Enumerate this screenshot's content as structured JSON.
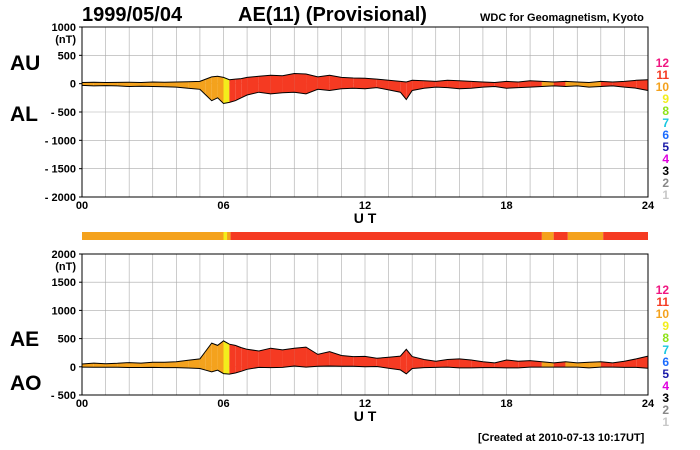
{
  "header": {
    "date": "1999/05/04",
    "title": "AE(11) (Provisional)",
    "source": "WDC for Geomagnetism, Kyoto",
    "created": "[Created at 2010-07-13 10:17UT]"
  },
  "labels": {
    "au": "AU",
    "al": "AL",
    "ae": "AE",
    "ao": "AO"
  },
  "colors": {
    "0": "#ffffff",
    "1": "#c8c8c8",
    "2": "#888888",
    "3": "#000000",
    "4": "#e000e0",
    "5": "#1a1aa8",
    "6": "#1c6cff",
    "7": "#19c7e0",
    "8": "#8fe21a",
    "9": "#f3ee1c",
    "10": "#f4a21d",
    "11": "#f53a22",
    "12": "#f01681"
  },
  "chart_data": [
    {
      "type": "area",
      "panel": "AU/AL",
      "xlabel": "U T",
      "ylabel_unit": "(nT)",
      "xlim": [
        0,
        24
      ],
      "ylim": [
        -2000,
        1000
      ],
      "x_ticks": [
        "00",
        "06",
        "12",
        "18",
        "24"
      ],
      "y_ticks": [
        "1000",
        "500",
        "0",
        "- 500",
        "- 1000",
        "- 1500",
        "- 2000"
      ],
      "color_levels": [
        "12",
        "11",
        "10",
        "9",
        "8",
        "7",
        "6",
        "5",
        "4",
        "3",
        "2",
        "1"
      ],
      "x": [
        0,
        0.5,
        1,
        1.5,
        2,
        2.5,
        3,
        3.5,
        4,
        4.5,
        5,
        5.25,
        5.5,
        5.75,
        6,
        6.25,
        6.5,
        6.75,
        7,
        7.5,
        8,
        8.5,
        9,
        9.5,
        10,
        10.5,
        11,
        11.5,
        12,
        12.5,
        13,
        13.5,
        13.75,
        14,
        14.5,
        15,
        15.5,
        16,
        16.5,
        17,
        17.5,
        18,
        18.5,
        19,
        19.5,
        20,
        20.5,
        21,
        21.5,
        22,
        22.5,
        23,
        23.5,
        24
      ],
      "series": [
        {
          "name": "AU",
          "values": [
            20,
            25,
            20,
            22,
            25,
            20,
            30,
            25,
            30,
            35,
            40,
            80,
            120,
            130,
            110,
            70,
            80,
            90,
            110,
            130,
            150,
            140,
            180,
            170,
            120,
            150,
            110,
            100,
            95,
            80,
            60,
            40,
            30,
            60,
            50,
            40,
            60,
            50,
            40,
            30,
            20,
            40,
            30,
            50,
            40,
            30,
            40,
            30,
            20,
            40,
            30,
            40,
            60,
            70
          ]
        },
        {
          "name": "AL",
          "values": [
            -30,
            -40,
            -35,
            -40,
            -50,
            -45,
            -50,
            -55,
            -60,
            -80,
            -100,
            -200,
            -300,
            -250,
            -350,
            -330,
            -300,
            -250,
            -200,
            -150,
            -180,
            -160,
            -150,
            -180,
            -100,
            -120,
            -90,
            -80,
            -90,
            -70,
            -110,
            -150,
            -280,
            -120,
            -80,
            -60,
            -70,
            -90,
            -80,
            -60,
            -50,
            -80,
            -70,
            -60,
            -50,
            -40,
            -50,
            -40,
            -60,
            -50,
            -40,
            -60,
            -80,
            -120
          ]
        }
      ]
    },
    {
      "type": "area",
      "panel": "AE/AO",
      "xlabel": "U T",
      "ylabel_unit": "(nT)",
      "xlim": [
        0,
        24
      ],
      "ylim": [
        -500,
        2000
      ],
      "x_ticks": [
        "00",
        "06",
        "12",
        "18",
        "24"
      ],
      "y_ticks": [
        "2000",
        "1500",
        "1000",
        "500",
        "0",
        "- 500"
      ],
      "color_levels": [
        "12",
        "11",
        "10",
        "9",
        "8",
        "7",
        "6",
        "5",
        "4",
        "3",
        "2",
        "1"
      ],
      "x": [
        0,
        0.5,
        1,
        1.5,
        2,
        2.5,
        3,
        3.5,
        4,
        4.5,
        5,
        5.25,
        5.5,
        5.75,
        6,
        6.25,
        6.5,
        6.75,
        7,
        7.5,
        8,
        8.5,
        9,
        9.5,
        10,
        10.5,
        11,
        11.5,
        12,
        12.5,
        13,
        13.5,
        13.75,
        14,
        14.5,
        15,
        15.5,
        16,
        16.5,
        17,
        17.5,
        18,
        18.5,
        19,
        19.5,
        20,
        20.5,
        21,
        21.5,
        22,
        22.5,
        23,
        23.5,
        24
      ],
      "series": [
        {
          "name": "AE",
          "values": [
            50,
            65,
            55,
            62,
            75,
            65,
            80,
            80,
            90,
            115,
            140,
            280,
            420,
            380,
            460,
            400,
            380,
            340,
            310,
            280,
            330,
            300,
            330,
            350,
            220,
            270,
            200,
            180,
            185,
            150,
            170,
            190,
            310,
            180,
            130,
            100,
            130,
            140,
            120,
            90,
            70,
            120,
            100,
            110,
            90,
            70,
            90,
            70,
            80,
            90,
            70,
            100,
            140,
            190
          ]
        },
        {
          "name": "AO",
          "values": [
            -5,
            -8,
            -8,
            -9,
            -12,
            -12,
            -10,
            -15,
            -15,
            -22,
            -30,
            -60,
            -90,
            -60,
            -120,
            -130,
            -110,
            -80,
            -45,
            -10,
            -15,
            -10,
            15,
            -5,
            10,
            15,
            10,
            10,
            2,
            5,
            -25,
            -55,
            -125,
            -30,
            -15,
            -10,
            -5,
            -20,
            -20,
            -15,
            -15,
            -20,
            -20,
            -5,
            -5,
            -5,
            -5,
            -5,
            -20,
            -5,
            -5,
            -10,
            -10,
            -25
          ]
        }
      ],
      "activity_bar": [
        {
          "from": 0,
          "to": 6.0,
          "level": "10"
        },
        {
          "from": 6.0,
          "to": 6.15,
          "level": "9"
        },
        {
          "from": 6.15,
          "to": 6.3,
          "level": "10"
        },
        {
          "from": 6.3,
          "to": 19.5,
          "level": "11"
        },
        {
          "from": 19.5,
          "to": 20.0,
          "level": "10"
        },
        {
          "from": 20.0,
          "to": 20.6,
          "level": "11"
        },
        {
          "from": 20.6,
          "to": 22.1,
          "level": "10"
        },
        {
          "from": 22.1,
          "to": 24,
          "level": "11"
        }
      ]
    }
  ]
}
